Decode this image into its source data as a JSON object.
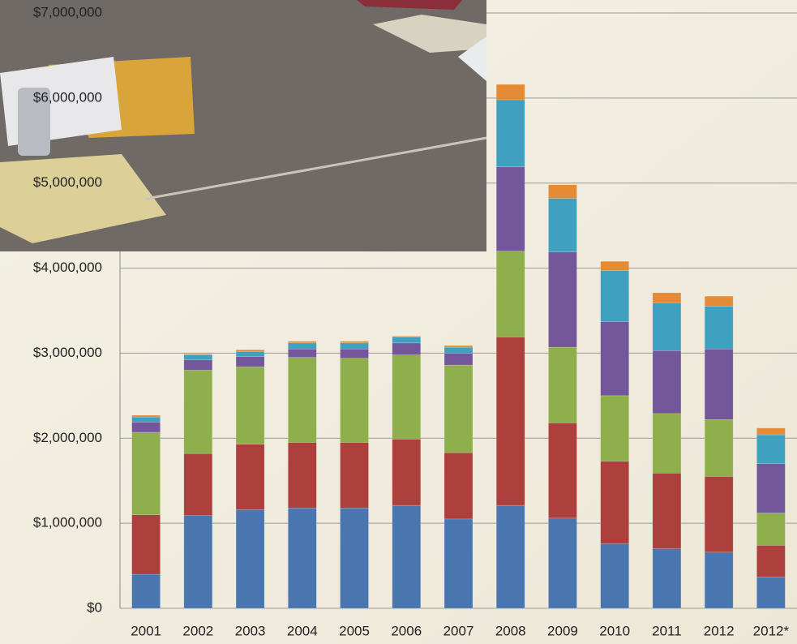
{
  "chart_data": {
    "type": "stacked_bar",
    "categories": [
      "2001",
      "2002",
      "2003",
      "2004",
      "2005",
      "2006",
      "2007",
      "2008",
      "2009",
      "2010",
      "2011",
      "2012",
      "2012*"
    ],
    "series": [
      {
        "color": "#4a76b0",
        "values": [
          400000,
          1090000,
          1160000,
          1180000,
          1180000,
          1210000,
          1050000,
          1210000,
          1060000,
          760000,
          700000,
          660000,
          370000
        ]
      },
      {
        "color": "#ad403c",
        "values": [
          700000,
          730000,
          770000,
          770000,
          770000,
          780000,
          780000,
          1980000,
          1120000,
          970000,
          890000,
          890000,
          370000
        ]
      },
      {
        "color": "#8fae4c",
        "values": [
          970000,
          980000,
          910000,
          1000000,
          990000,
          990000,
          1030000,
          1010000,
          890000,
          770000,
          700000,
          670000,
          380000
        ]
      },
      {
        "color": "#74579a",
        "values": [
          120000,
          120000,
          120000,
          100000,
          110000,
          140000,
          140000,
          990000,
          1120000,
          870000,
          740000,
          830000,
          580000
        ]
      },
      {
        "color": "#3fa0c0",
        "values": [
          60000,
          60000,
          60000,
          70000,
          70000,
          70000,
          70000,
          790000,
          630000,
          600000,
          560000,
          500000,
          340000
        ]
      },
      {
        "color": "#e58a35",
        "values": [
          20000,
          10000,
          20000,
          20000,
          20000,
          10000,
          20000,
          180000,
          160000,
          110000,
          120000,
          120000,
          80000
        ]
      }
    ],
    "ylim": [
      0,
      7000000
    ],
    "yticks": [
      {
        "value": 0,
        "label": "$0"
      },
      {
        "value": 1000000,
        "label": "$1,000,000"
      },
      {
        "value": 2000000,
        "label": "$2,000,000"
      },
      {
        "value": 3000000,
        "label": "$3,000,000"
      },
      {
        "value": 4000000,
        "label": "$4,000,000"
      },
      {
        "value": 5000000,
        "label": "$5,000,000"
      },
      {
        "value": 6000000,
        "label": "$6,000,000"
      },
      {
        "value": 7000000,
        "label": "$7,000,000"
      }
    ],
    "grid": true
  }
}
